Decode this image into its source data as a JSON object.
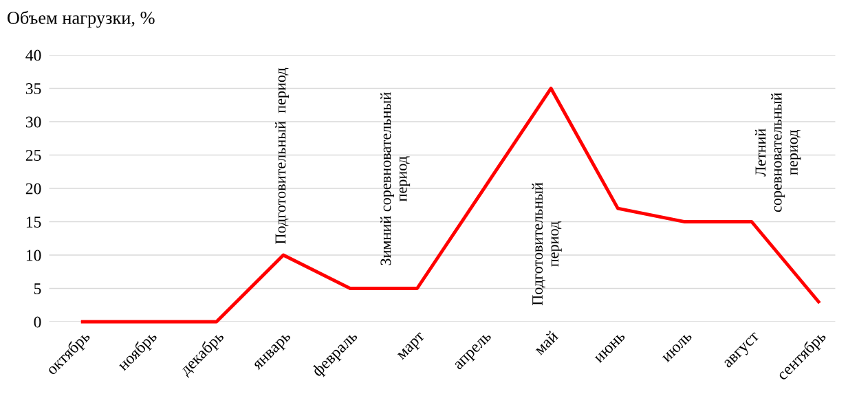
{
  "chart_data": {
    "type": "line",
    "ylabel": "Объем нагрузки, %",
    "categories": [
      "октябрь",
      "ноябрь",
      "декабрь",
      "январь",
      "февраль",
      "март",
      "апрель",
      "май",
      "июнь",
      "июль",
      "август",
      "сентябрь"
    ],
    "series": [
      {
        "color": "#ff0000",
        "values": [
          0,
          0,
          0,
          10,
          5,
          5,
          20,
          35,
          17,
          15,
          15,
          3
        ]
      }
    ],
    "ylim": [
      0,
      40
    ],
    "yticks": [
      0,
      5,
      10,
      15,
      20,
      25,
      30,
      35,
      40
    ],
    "grid": "y",
    "legend": false,
    "marker": "none",
    "line_style": "solid",
    "annotations": [
      "Подготовительный  период",
      "Зимний соревновательный\nпериод",
      "Подготовительный\nпериод",
      "Летний\nсоревновательный\nпериод"
    ]
  }
}
